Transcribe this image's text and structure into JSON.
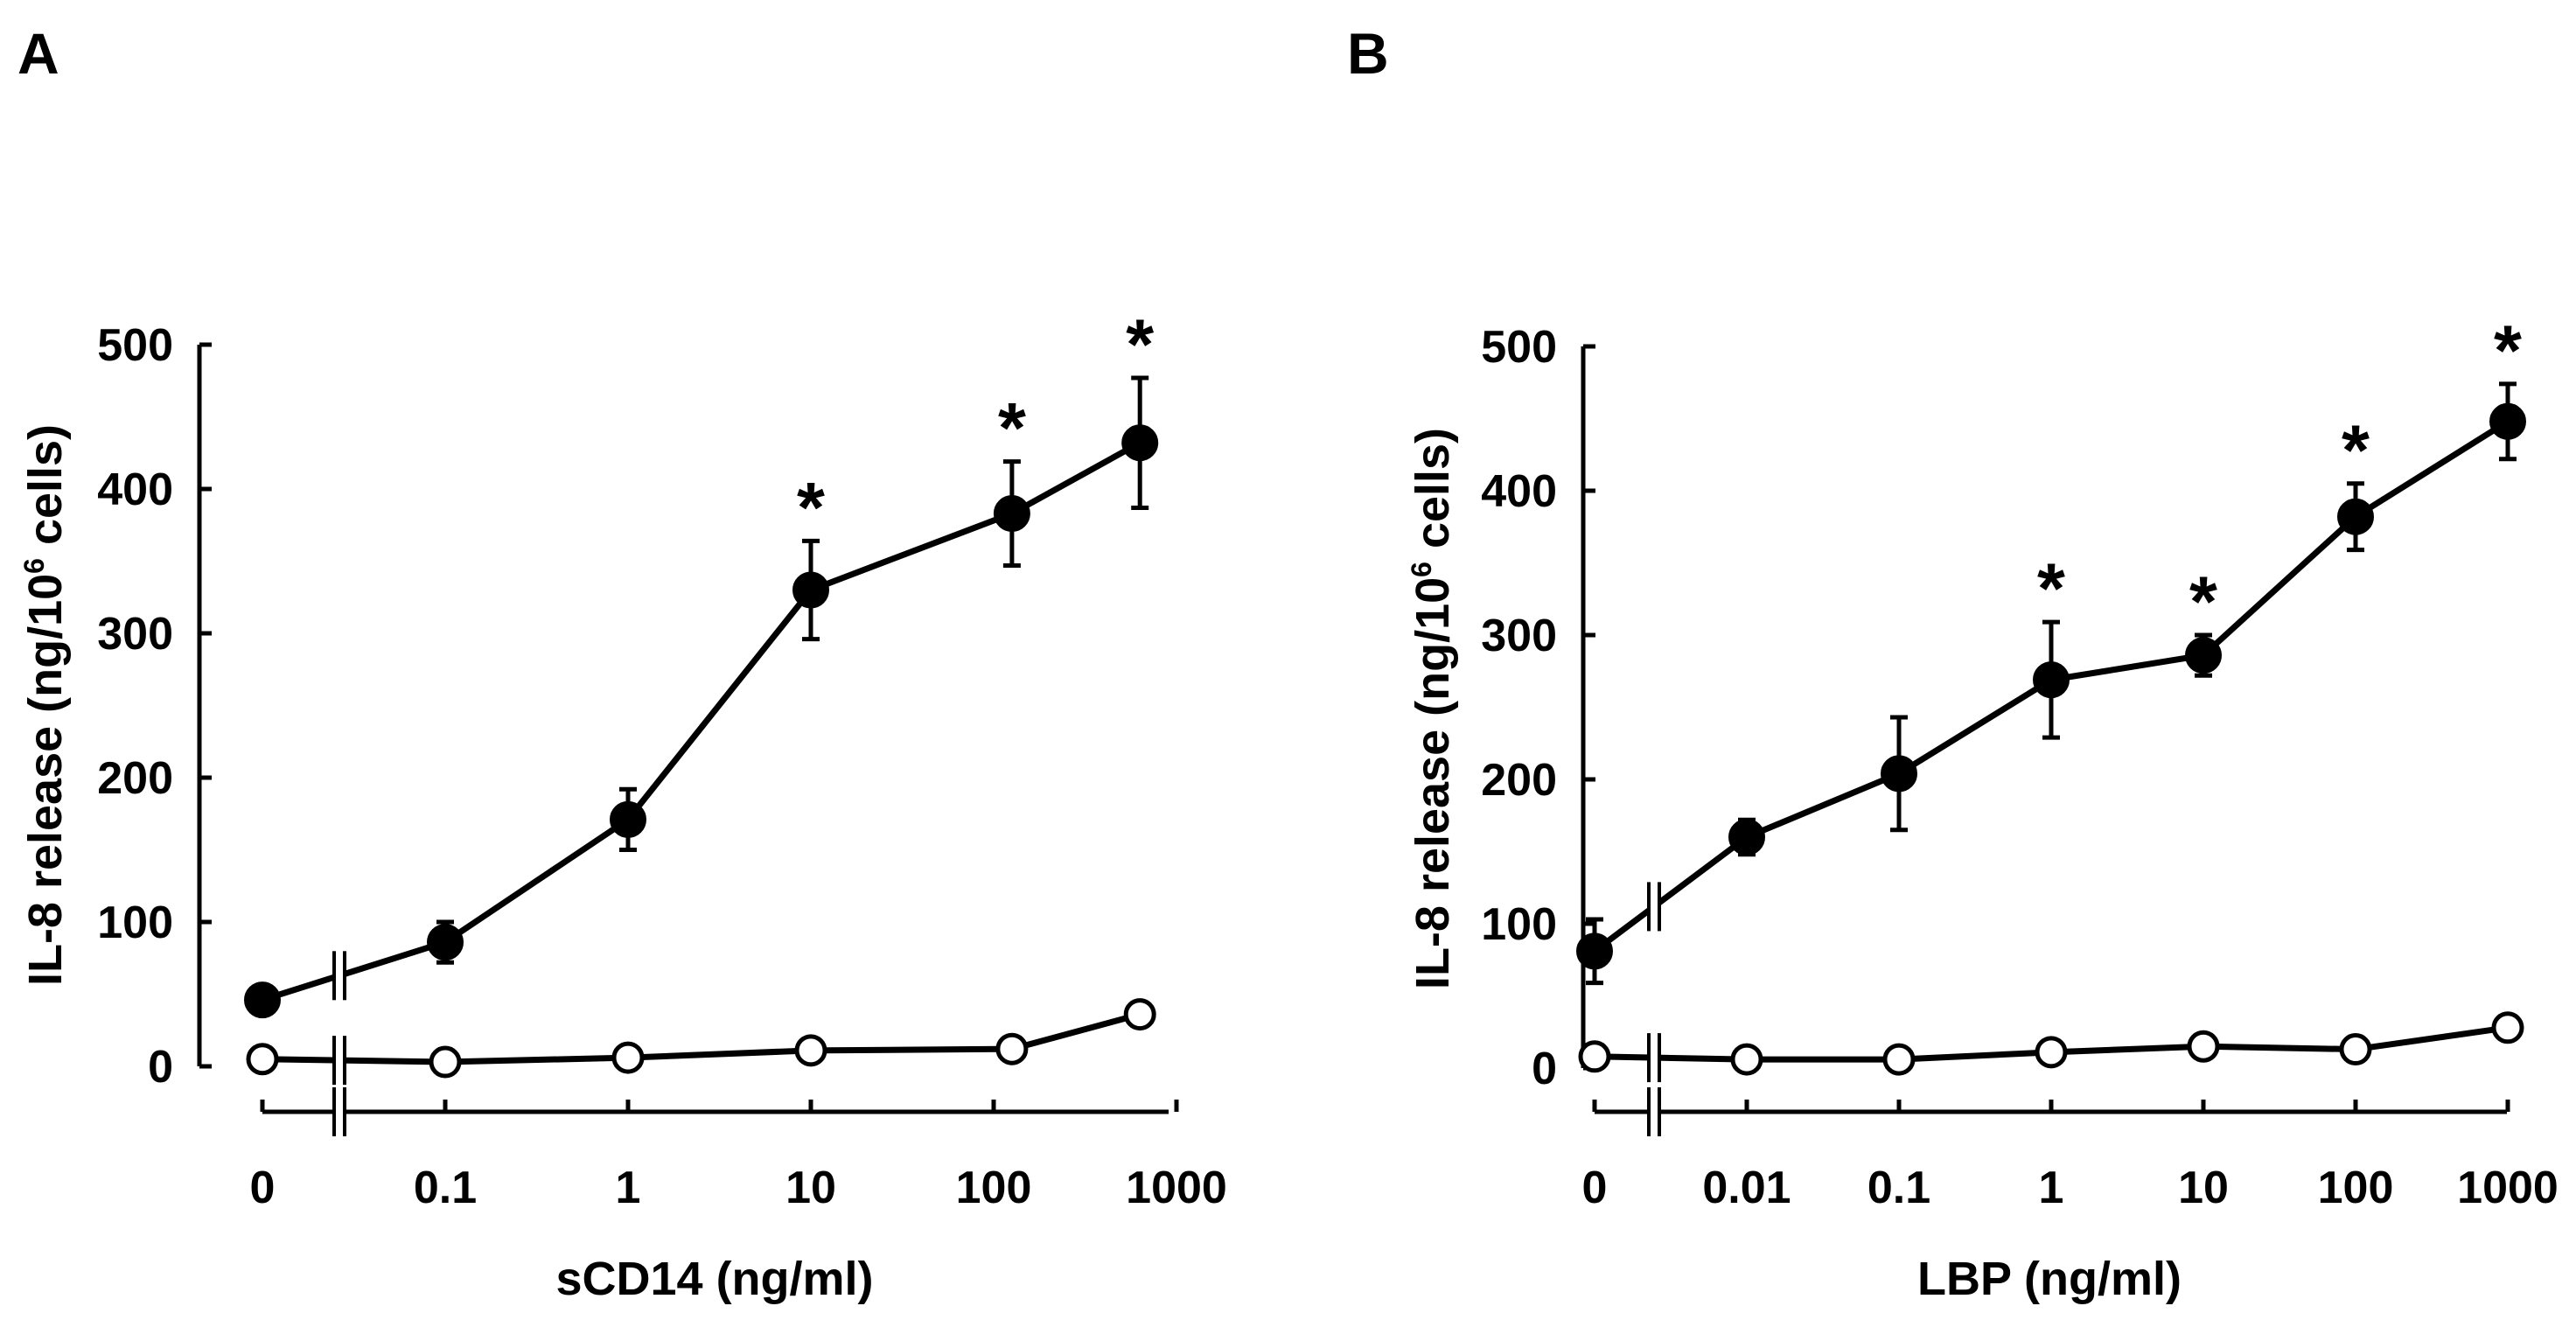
{
  "chart_data": [
    {
      "type": "line",
      "panel_label": "A",
      "xlabel": "sCD14 (ng/ml)",
      "ylabel_main": "IL-8 release (ng/10",
      "ylabel_sup": "6",
      "ylabel_end": " cells)",
      "categories": [
        "0",
        "0.1",
        "1",
        "10",
        "100",
        "1000"
      ],
      "ylim": [
        0,
        500
      ],
      "yticks": [
        "0",
        "100",
        "200",
        "300",
        "400",
        "500"
      ],
      "x_axis_break": true,
      "series": [
        {
          "marker": "filled",
          "points": [
            {
              "x": 0,
              "y": 46,
              "err": 0
            },
            {
              "x": 1,
              "y": 86,
              "err": 14
            },
            {
              "x": 2,
              "y": 171,
              "err": 21
            },
            {
              "x": 3,
              "y": 330,
              "err": 34
            },
            {
              "x": 4.1,
              "y": 383,
              "err": 36
            },
            {
              "x": 4.8,
              "y": 432,
              "err": 45
            }
          ],
          "significant": [
            false,
            false,
            false,
            true,
            true,
            true
          ]
        },
        {
          "marker": "open",
          "points": [
            {
              "x": 0,
              "y": 5,
              "err": 0
            },
            {
              "x": 1,
              "y": 3,
              "err": 0
            },
            {
              "x": 2,
              "y": 6,
              "err": 0
            },
            {
              "x": 3,
              "y": 11,
              "err": 0
            },
            {
              "x": 4.1,
              "y": 12,
              "err": 0
            },
            {
              "x": 4.8,
              "y": 36,
              "err": 0
            }
          ]
        }
      ],
      "annotation": "*"
    },
    {
      "type": "line",
      "panel_label": "B",
      "xlabel": "LBP (ng/ml)",
      "ylabel_main": "IL-8 release (ng/10",
      "ylabel_sup": "6",
      "ylabel_end": " cells)",
      "categories": [
        "0",
        "0.01",
        "0.1",
        "1",
        "10",
        "100",
        "1000"
      ],
      "ylim": [
        0,
        500
      ],
      "yticks": [
        "0",
        "100",
        "200",
        "300",
        "400",
        "500"
      ],
      "x_axis_break": true,
      "series": [
        {
          "marker": "filled",
          "points": [
            {
              "x": 0,
              "y": 81,
              "err": 22
            },
            {
              "x": 1,
              "y": 160,
              "err": 12
            },
            {
              "x": 2,
              "y": 204,
              "err": 39
            },
            {
              "x": 3,
              "y": 269,
              "err": 40
            },
            {
              "x": 4,
              "y": 286,
              "err": 14
            },
            {
              "x": 5,
              "y": 382,
              "err": 23
            },
            {
              "x": 6,
              "y": 448,
              "err": 26
            }
          ],
          "significant": [
            false,
            false,
            false,
            true,
            true,
            true,
            true
          ]
        },
        {
          "marker": "open",
          "points": [
            {
              "x": 0,
              "y": 8,
              "err": 0
            },
            {
              "x": 1,
              "y": 6,
              "err": 0
            },
            {
              "x": 2,
              "y": 6,
              "err": 0
            },
            {
              "x": 3,
              "y": 11,
              "err": 0
            },
            {
              "x": 4,
              "y": 15,
              "err": 0
            },
            {
              "x": 5,
              "y": 13,
              "err": 0
            },
            {
              "x": 6,
              "y": 28,
              "err": 0
            }
          ]
        }
      ],
      "annotation": "*"
    }
  ]
}
